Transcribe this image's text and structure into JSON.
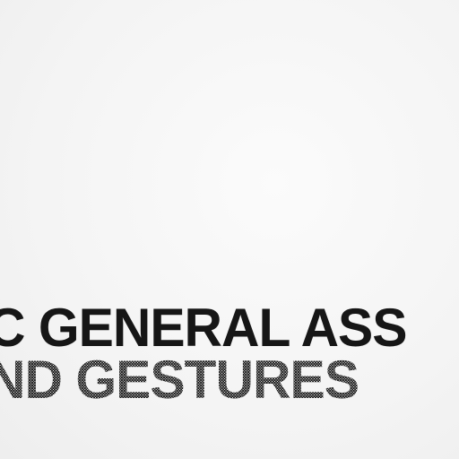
{
  "document": {
    "line1": "C GENERAL ASS",
    "line2": "ND GESTURES"
  },
  "colors": {
    "paper": "#f6f6f6",
    "ink": "#161616"
  }
}
